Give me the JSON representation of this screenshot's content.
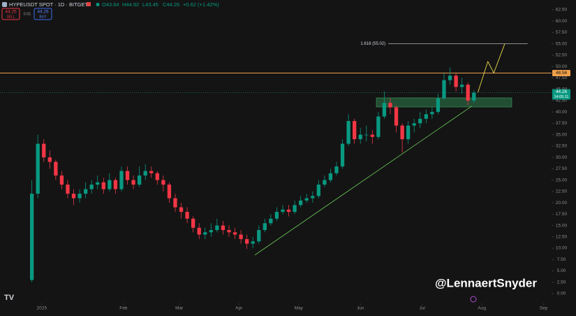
{
  "chart_data": {
    "type": "candlestick",
    "header": {
      "symbol": "HYPEUSDT SPOT · 1D · BITGET",
      "open": "O43.64",
      "high": "H44.92",
      "low": "L43.45",
      "close": "C44.26",
      "change": "+0.62 (+1.42%)",
      "sell_price": "44.25",
      "sell": "SELL",
      "spread": "0.01",
      "buy_price": "44.26",
      "buy": "BUY"
    },
    "up_color": "#089981",
    "down_color": "#f23645",
    "x": [
      0,
      3,
      6,
      9,
      12,
      15,
      18,
      21,
      24,
      27,
      30,
      33,
      36,
      39,
      42,
      45,
      48,
      51,
      54,
      57,
      60,
      63,
      66,
      69,
      72,
      75,
      78,
      81,
      84,
      87,
      90,
      93,
      96,
      99,
      102,
      105,
      108,
      111,
      114,
      117,
      120,
      123,
      126,
      129,
      132,
      135,
      138,
      141,
      144,
      147,
      150,
      153,
      156,
      159,
      162,
      165,
      168,
      171,
      174,
      177,
      180,
      183,
      186,
      189,
      192,
      195,
      198,
      201,
      204,
      207,
      210,
      213,
      216,
      219,
      222
    ],
    "open": [
      3,
      22,
      33,
      30,
      29,
      26,
      24,
      22,
      21,
      22,
      23,
      24,
      24.5,
      23,
      25,
      23,
      27,
      25,
      24,
      26,
      27,
      26.5,
      25,
      24,
      21,
      19,
      18,
      16.5,
      14.5,
      13,
      13.5,
      14,
      15,
      14,
      13.5,
      13,
      12,
      11,
      11.5,
      14,
      15.5,
      16.5,
      18,
      18.5,
      18,
      19.5,
      20.5,
      21,
      21.5,
      24,
      25,
      26.5,
      28,
      33,
      38,
      34,
      35,
      35,
      34.5,
      39,
      42,
      41,
      37,
      34,
      37,
      37.5,
      38.5,
      39.5,
      40,
      43,
      47,
      48,
      45.5,
      46,
      42.5
    ],
    "high": [
      25,
      35,
      34,
      31.5,
      29.5,
      27,
      25,
      23,
      23,
      24.5,
      25,
      26,
      25.5,
      26.5,
      25.5,
      28,
      28,
      26,
      28,
      28.5,
      28,
      27,
      26,
      24.5,
      22,
      20,
      19,
      17,
      15.5,
      14.5,
      15.5,
      16.5,
      16,
      15,
      14.5,
      14,
      13,
      12.5,
      15,
      16.5,
      17.5,
      19,
      19.5,
      19.5,
      20.5,
      21.5,
      22,
      22.5,
      25,
      26,
      27.5,
      29,
      34,
      39.5,
      38.5,
      36.5,
      37,
      36,
      40,
      44.5,
      43,
      41.5,
      37.5,
      38,
      38.5,
      40,
      40.5,
      41,
      44,
      48.5,
      49.8,
      48.5,
      47.5,
      46.5,
      44.8
    ],
    "low": [
      2.5,
      21,
      29,
      27.5,
      25,
      23,
      21,
      19.5,
      20,
      21,
      22,
      23,
      22,
      22.5,
      22,
      22.5,
      24,
      23,
      23.5,
      25,
      25.5,
      24,
      22.5,
      20,
      18,
      16.5,
      15.5,
      13.5,
      12,
      12,
      12.5,
      13.5,
      13,
      12.5,
      12,
      11,
      9.8,
      10,
      11,
      13.5,
      15,
      16,
      17.5,
      17,
      17.5,
      19,
      20,
      20,
      21,
      23.5,
      24.5,
      26,
      27.5,
      32.5,
      33,
      33,
      33.5,
      33,
      34,
      38.5,
      39.5,
      35.5,
      31,
      33,
      35.5,
      36.5,
      37.5,
      38.5,
      39.5,
      42.5,
      46,
      44.5,
      44,
      41.5,
      42
    ],
    "close": [
      22,
      33,
      30,
      29,
      26,
      24,
      22,
      21,
      22,
      23,
      24,
      24.5,
      23,
      25,
      23,
      27,
      25,
      24,
      26,
      27,
      26.5,
      25,
      24,
      21,
      19,
      18,
      16.5,
      14.5,
      13,
      13.5,
      14,
      15,
      14,
      13.5,
      13,
      12,
      11,
      11.5,
      14,
      15.5,
      16.5,
      18,
      18.5,
      18,
      19.5,
      20.5,
      21,
      21.5,
      24,
      25,
      26.5,
      28,
      33,
      38,
      34,
      35,
      35,
      34.5,
      39,
      42,
      41,
      37,
      34,
      37,
      37.5,
      38.5,
      39.5,
      40,
      43,
      47,
      48,
      45.5,
      46,
      42.5,
      44.26
    ],
    "last_price": 44.26,
    "countdown": "14:05:11",
    "resistance": {
      "value": 48.56,
      "color": "#f0a04b"
    },
    "fib": {
      "label": "1.618 (55.02)",
      "value": 55.02,
      "x": [
        179,
        249
      ],
      "color": "#9e9e9e"
    },
    "zone": {
      "x": [
        173,
        241
      ],
      "y": [
        41.1,
        43.1
      ],
      "color": "#2e7d4f"
    },
    "trendline": {
      "x": [
        112,
        221
      ],
      "y": [
        8.5,
        41.3
      ],
      "color": "#6ccf5a"
    },
    "projection": {
      "x": [
        224,
        229,
        232,
        237.5
      ],
      "y": [
        44.3,
        51.1,
        48.6,
        55.02
      ],
      "color": "#e8d84a"
    },
    "watermark": "@LennaertSnyder",
    "xlim": [
      -16,
      261
    ],
    "ylim": [
      -1.85,
      64.65
    ],
    "xticks": [
      {
        "value": 5,
        "label": "2025"
      },
      {
        "value": 46,
        "label": "Feb"
      },
      {
        "value": 74,
        "label": "Mar"
      },
      {
        "value": 104,
        "label": "Apr"
      },
      {
        "value": 134,
        "label": "May"
      },
      {
        "value": 165,
        "label": "Jun"
      },
      {
        "value": 196,
        "label": "Jul"
      },
      {
        "value": 226,
        "label": "Aug"
      },
      {
        "value": 257,
        "label": "Sep"
      }
    ],
    "yticks": [
      {
        "value": 0,
        "label": "0.00"
      },
      {
        "value": 2.5,
        "label": "2.50"
      },
      {
        "value": 5,
        "label": "5.00"
      },
      {
        "value": 7.5,
        "label": "7.50"
      },
      {
        "value": 10,
        "label": "10.00"
      },
      {
        "value": 12.5,
        "label": "12.50"
      },
      {
        "value": 15,
        "label": "15.00"
      },
      {
        "value": 17.5,
        "label": "17.50"
      },
      {
        "value": 20,
        "label": "20.00"
      },
      {
        "value": 22.5,
        "label": "22.50"
      },
      {
        "value": 25,
        "label": "25.00"
      },
      {
        "value": 27.5,
        "label": "27.50"
      },
      {
        "value": 30,
        "label": "30.00"
      },
      {
        "value": 32.5,
        "label": "32.50"
      },
      {
        "value": 35,
        "label": "35.00"
      },
      {
        "value": 37.5,
        "label": "37.50"
      },
      {
        "value": 40,
        "label": "40.00"
      },
      {
        "value": 42.5,
        "label": "42.50"
      },
      {
        "value": 45,
        "label": "45.00"
      },
      {
        "value": 47.5,
        "label": "47.50"
      },
      {
        "value": 50,
        "label": "50.00"
      },
      {
        "value": 52.5,
        "label": "52.50"
      },
      {
        "value": 55,
        "label": "55.00"
      },
      {
        "value": 57.5,
        "label": "57.50"
      },
      {
        "value": 60,
        "label": "60.00"
      },
      {
        "value": 62.5,
        "label": "62.50"
      }
    ]
  }
}
